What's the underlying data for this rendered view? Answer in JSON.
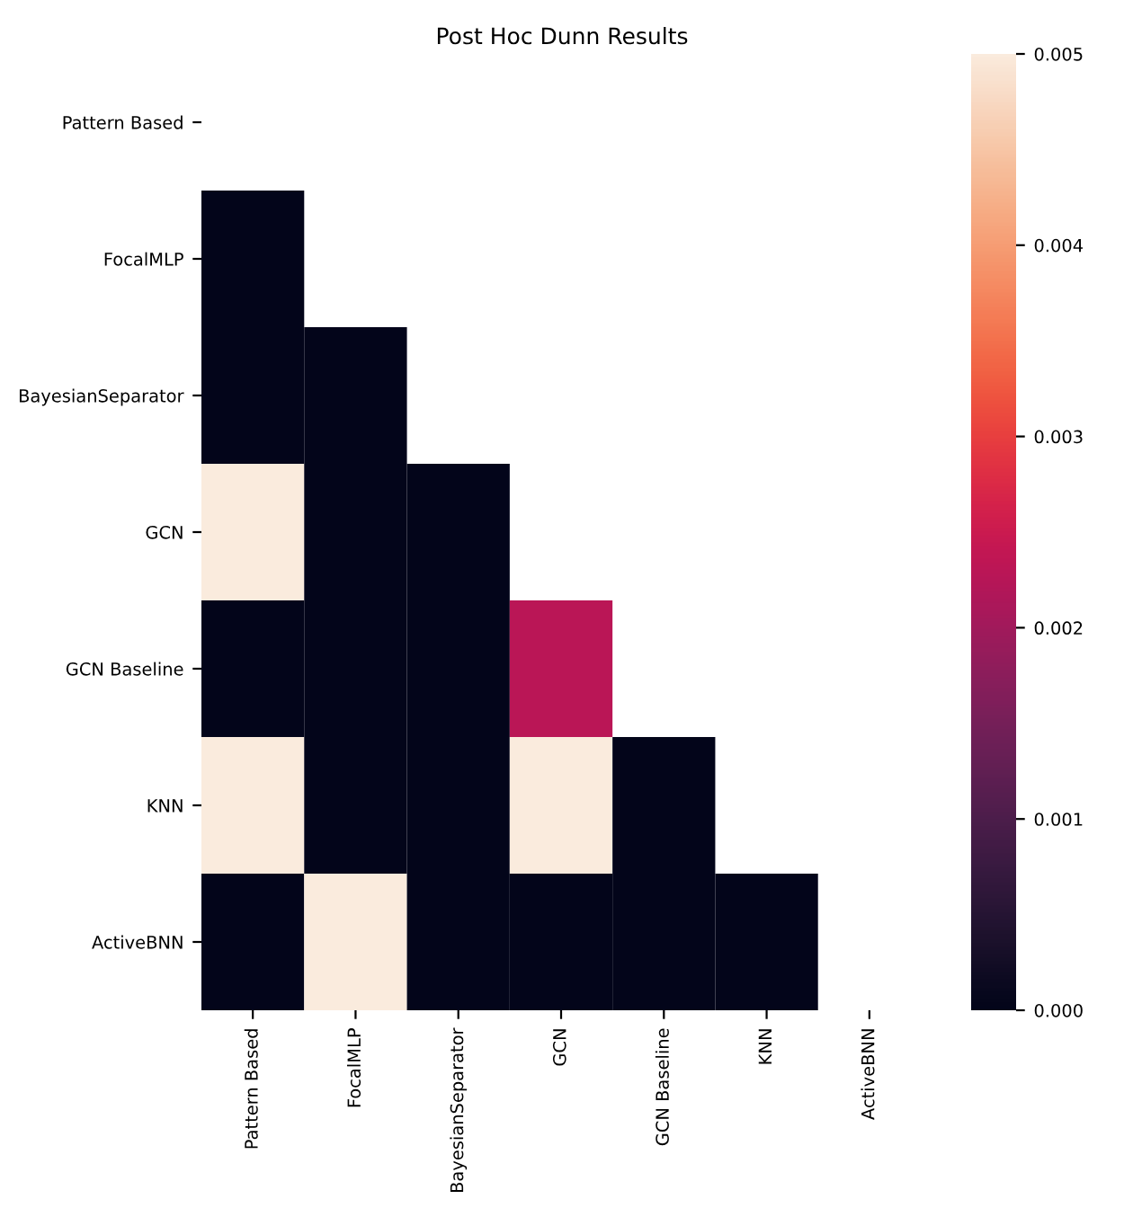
{
  "chart_data": {
    "type": "heatmap",
    "title": "Post Hoc Dunn Results",
    "categories": [
      "Pattern Based",
      "FocalMLP",
      "BayesianSeparator",
      "GCN",
      "GCN Baseline",
      "KNN",
      "ActiveBNN"
    ],
    "y_categories": [
      "Pattern Based",
      "FocalMLP",
      "BayesianSeparator",
      "GCN",
      "GCN Baseline",
      "KNN",
      "ActiveBNN"
    ],
    "cells": [
      [
        null,
        null,
        null,
        null,
        null,
        null,
        null
      ],
      [
        0,
        null,
        null,
        null,
        null,
        null,
        null
      ],
      [
        0,
        0,
        null,
        null,
        null,
        null,
        null
      ],
      [
        0.005,
        0,
        0,
        null,
        null,
        null,
        null
      ],
      [
        0,
        0,
        0,
        0.0023,
        null,
        null,
        null
      ],
      [
        0.005,
        0,
        0,
        0.005,
        0,
        null,
        null
      ],
      [
        0,
        0.005,
        0,
        0,
        0,
        0,
        null
      ]
    ],
    "clim": [
      0,
      0.005
    ],
    "cticks": [
      {
        "value": 0,
        "label": "0.000"
      },
      {
        "value": 0.001,
        "label": "0.001"
      },
      {
        "value": 0.002,
        "label": "0.002"
      },
      {
        "value": 0.003,
        "label": "0.003"
      },
      {
        "value": 0.004,
        "label": "0.004"
      },
      {
        "value": 0.005,
        "label": "0.005"
      }
    ]
  }
}
